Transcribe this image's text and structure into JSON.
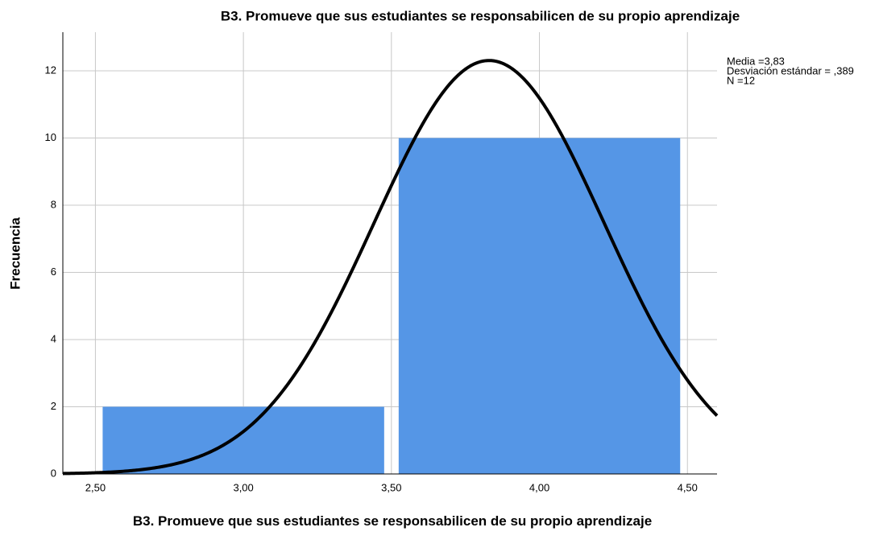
{
  "chart_data": {
    "type": "histogram",
    "title": "B3. Promueve que sus estudiantes se responsabilicen de su propio aprendizaje",
    "xlabel": "B3. Promueve que sus estudiantes se responsabilicen de su propio aprendizaje",
    "ylabel": "Frecuencia",
    "bins": [
      2.5,
      3.5,
      4.5
    ],
    "values": [
      2,
      10
    ],
    "color": "#5596e6",
    "xlim": [
      2.39,
      4.6
    ],
    "ylim": [
      0,
      13.15
    ],
    "xticks": [
      {
        "value": 2.5,
        "label": "2,50"
      },
      {
        "value": 3.0,
        "label": "3,00"
      },
      {
        "value": 3.5,
        "label": "3,50"
      },
      {
        "value": 4.0,
        "label": "4,00"
      },
      {
        "value": 4.5,
        "label": "4,50"
      }
    ],
    "yticks": [
      0,
      2,
      4,
      6,
      8,
      10,
      12
    ],
    "grid": true,
    "normal_curve": {
      "mean": {
        "value": 3.83,
        "label": "Media =3,83"
      },
      "sd": {
        "value": 0.389,
        "label": "Desviación estándar = ,389"
      },
      "n": {
        "value": 12,
        "label": "N =12"
      }
    }
  }
}
